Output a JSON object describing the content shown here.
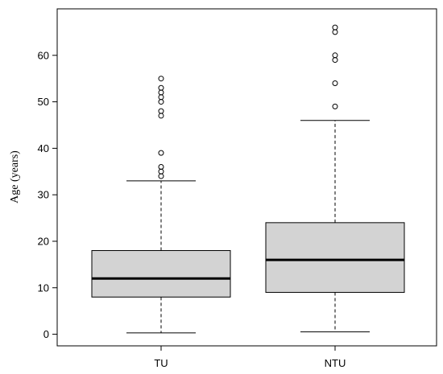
{
  "chart_data": {
    "type": "boxplot",
    "title": "",
    "xlabel": "",
    "ylabel": "Age (years)",
    "ylim": [
      -2.5,
      70
    ],
    "yticks": [
      0,
      10,
      20,
      30,
      40,
      50,
      60
    ],
    "categories": [
      "TU",
      "NTU"
    ],
    "box_fill": "#d3d3d3",
    "line_color": "#000000",
    "boxes": [
      {
        "label": "TU",
        "whisker_low": 0.3,
        "q1": 8,
        "median": 12,
        "q3": 18,
        "whisker_high": 33,
        "outliers": [
          34,
          35,
          36,
          39,
          47,
          48,
          50,
          51,
          52,
          53,
          55
        ]
      },
      {
        "label": "NTU",
        "whisker_low": 0.5,
        "q1": 9,
        "median": 16,
        "q3": 24,
        "whisker_high": 46,
        "outliers": [
          49,
          54,
          59,
          60,
          65,
          66
        ]
      }
    ]
  }
}
